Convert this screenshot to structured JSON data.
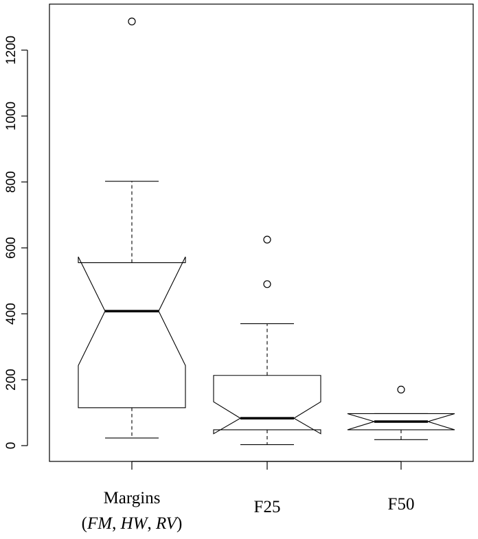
{
  "chart_data": {
    "type": "boxplot",
    "notched": true,
    "title": "",
    "xlabel": "",
    "ylabel": "",
    "ylim": [
      -50,
      1330
    ],
    "yticks": [
      0,
      200,
      400,
      600,
      800,
      1000,
      1200
    ],
    "ytick_labels": [
      "0",
      "200",
      "400",
      "600",
      "800",
      "1000",
      "1200"
    ],
    "categories": [
      {
        "label": "Margins",
        "sublabel_parts": [
          "(",
          "FM",
          ", ",
          "HW",
          ", ",
          "RV",
          ")"
        ]
      },
      {
        "label": "F25"
      },
      {
        "label": "F50"
      }
    ],
    "boxes": [
      {
        "whisker_low": 23,
        "q1": 115,
        "median": 408,
        "q3": 555,
        "whisker_high": 802,
        "notch_low": 243,
        "notch_high": 573,
        "outliers": [
          1287
        ]
      },
      {
        "whisker_low": 3,
        "q1": 48,
        "median": 83,
        "q3": 213,
        "whisker_high": 370,
        "notch_low": 36,
        "notch_high": 133,
        "outliers": [
          490,
          625
        ]
      },
      {
        "whisker_low": 18,
        "q1": 48,
        "median": 73,
        "q3": 97,
        "whisker_high": 97,
        "notch_low": 48,
        "notch_high": 97,
        "outliers": [
          170
        ]
      }
    ],
    "grid": false,
    "legend": "none"
  }
}
